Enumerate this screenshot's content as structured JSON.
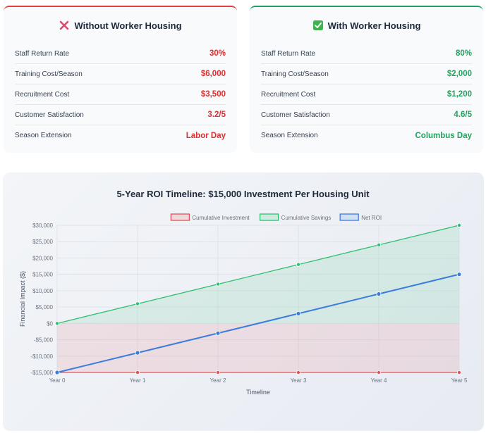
{
  "cards": {
    "without": {
      "title": "Without Worker Housing",
      "icon": "x-mark-icon",
      "accent": "#e53e3e",
      "rows": [
        {
          "label": "Staff Return Rate",
          "value": "30%"
        },
        {
          "label": "Training Cost/Season",
          "value": "$6,000"
        },
        {
          "label": "Recruitment Cost",
          "value": "$3,500"
        },
        {
          "label": "Customer Satisfaction",
          "value": "3.2/5"
        },
        {
          "label": "Season Extension",
          "value": "Labor Day"
        }
      ]
    },
    "with": {
      "title": "With Worker Housing",
      "icon": "check-box-icon",
      "accent": "#22a064",
      "rows": [
        {
          "label": "Staff Return Rate",
          "value": "80%"
        },
        {
          "label": "Training Cost/Season",
          "value": "$2,000"
        },
        {
          "label": "Recruitment Cost",
          "value": "$1,200"
        },
        {
          "label": "Customer Satisfaction",
          "value": "4.6/5"
        },
        {
          "label": "Season Extension",
          "value": "Columbus Day"
        }
      ]
    }
  },
  "chart_data": {
    "type": "line",
    "title": "5-Year ROI Timeline: $15,000 Investment Per Housing Unit",
    "xlabel": "Timeline",
    "ylabel": "Financial Impact ($)",
    "categories": [
      "Year 0",
      "Year 1",
      "Year 2",
      "Year 3",
      "Year 4",
      "Year 5"
    ],
    "ylim": [
      -15000,
      30000
    ],
    "yticks": [
      -15000,
      -10000,
      -5000,
      0,
      5000,
      10000,
      15000,
      20000,
      25000,
      30000
    ],
    "ytick_labels": [
      "-$15,000",
      "-$10,000",
      "-$5,000",
      "$0",
      "$5,000",
      "$10,000",
      "$15,000",
      "$20,000",
      "$25,000",
      "$30,000"
    ],
    "grid": true,
    "legend": "top",
    "series": [
      {
        "name": "Cumulative Investment",
        "values": [
          -15000,
          -15000,
          -15000,
          -15000,
          -15000,
          -15000
        ],
        "color": "#e0525a",
        "fill": true
      },
      {
        "name": "Cumulative Savings",
        "values": [
          0,
          6000,
          12000,
          18000,
          24000,
          30000
        ],
        "color": "#2fbf71",
        "fill": true
      },
      {
        "name": "Net ROI",
        "values": [
          -15000,
          -9000,
          -3000,
          3000,
          9000,
          15000
        ],
        "color": "#3b7ddd",
        "fill": false
      }
    ]
  }
}
